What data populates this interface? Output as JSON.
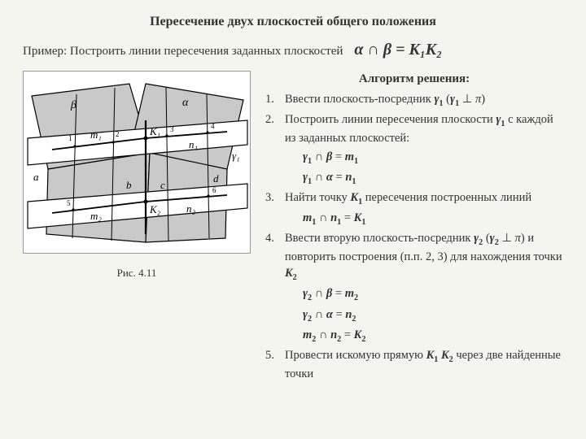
{
  "title": "Пересечение двух плоскостей общего положения",
  "example": {
    "text": "Пример: Построить линии пересечения заданных плоскостей",
    "formula": "α ∩ β = K₁K₂"
  },
  "figure": {
    "caption": "Рис. 4.11",
    "labels": {
      "alpha": "α",
      "beta": "β",
      "m1": "m₁",
      "m2": "m₂",
      "n1": "n₁",
      "n2": "n₂",
      "K1": "K₁",
      "K2": "K₂",
      "a": "a",
      "b": "b",
      "c": "c",
      "d": "d",
      "gamma1": "γ₁",
      "p1": "1",
      "p2": "2",
      "p3": "3",
      "p4": "4",
      "p5": "5",
      "p6": "6"
    },
    "colors": {
      "bg": "#ffffff",
      "stroke": "#000000",
      "fill_plane": "#c9c9c9"
    }
  },
  "algorithm": {
    "title": "Алгоритм решения:",
    "items": [
      {
        "n": "1.",
        "html": "Ввести  плоскость-посредник  <b class='m'>γ<span class='sub'>1</span></b> (<b class='m'>γ<span class='sub'>1</span></b> <span style='font-family:Arial'>⊥</span> <i class='m'>π</i>)"
      },
      {
        "n": "2.",
        "html": "Построить линии пересечения плоскости <b class='m'>γ<span class='sub'>1</span></b> с каждой из заданных плоскостей:"
      },
      {
        "indent": true,
        "html": "<b class='m'>γ<span class='sub'>1</span></b> ∩ <b class='m'>β</b> = <b class='m'>m<span class='sub'>1</span></b>"
      },
      {
        "indent": true,
        "html": "<b class='m'>γ<span class='sub'>1</span></b> ∩ <b class='m'>α</b> = <b class='m'>n<span class='sub'>1</span></b>"
      },
      {
        "n": "3.",
        "html": "Найти точку  <b class='m'>K<span class='sub'>1</span></b>  пересечения построенных линий"
      },
      {
        "indent": true,
        "html": "<b class='m'>m<span class='sub'>1</span></b> ∩ <b class='m'>n<span class='sub'>1</span></b> = <b class='m'>K<span class='sub'>1</span></b>"
      },
      {
        "n": "4.",
        "html": "Ввести вторую плоскость-посредник   <b class='m'>γ<span class='sub'>2</span></b> (<b class='m'>γ<span class='sub'>2</span></b> <span style='font-family:Arial'>⊥</span> <i class='m'>π</i>) и повторить построения (п.п. 2, 3) для нахождения точки <b class='m'>K<span class='sub'>2</span></b>"
      },
      {
        "indent": true,
        "html": "<b class='m'>γ<span class='sub'>2</span></b> ∩ <b class='m'>β</b> = <b class='m'>m<span class='sub'>2</span></b>"
      },
      {
        "indent": true,
        "html": "<b class='m'>γ<span class='sub'>2</span></b> ∩ <b class='m'>α</b> = <b class='m'>n<span class='sub'>2</span></b>"
      },
      {
        "indent": true,
        "html": " <b class='m'>m<span class='sub'>2</span></b> ∩ <b class='m'>n<span class='sub'>2</span></b> = <b class='m'>K<span class='sub'>2</span></b>"
      },
      {
        "n": "5.",
        "html": "Провести искомую прямую <b class='m'>K<span class='sub'>1</span> K<span class='sub'>2</span></b> через две найденные точки"
      }
    ]
  },
  "style": {
    "title_fontsize": 16,
    "body_fontsize": 14.5,
    "formula_fontsize": 20,
    "background": "#f5f5f0",
    "text_color": "#333333"
  }
}
